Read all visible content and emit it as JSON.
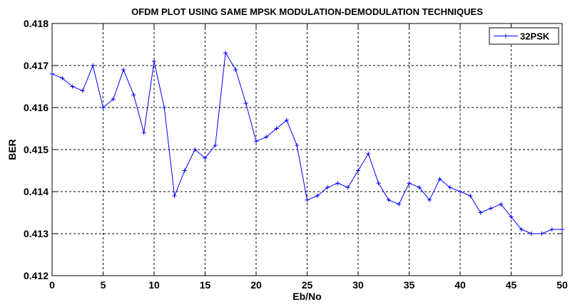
{
  "chart_data": {
    "type": "line",
    "title": "OFDM PLOT USING SAME MPSK MODULATION-DEMODULATION TECHNIQUES",
    "xlabel": "Eb/No",
    "ylabel": "BER",
    "xlim": [
      0,
      50
    ],
    "ylim": [
      0.412,
      0.418
    ],
    "xticks": [
      0,
      5,
      10,
      15,
      20,
      25,
      30,
      35,
      40,
      45,
      50
    ],
    "yticks": [
      0.412,
      0.413,
      0.414,
      0.415,
      0.416,
      0.417,
      0.418
    ],
    "xtick_labels": [
      "0",
      "5",
      "10",
      "15",
      "20",
      "25",
      "30",
      "35",
      "40",
      "45",
      "50"
    ],
    "ytick_labels": [
      "0.412",
      "0.413",
      "0.414",
      "0.415",
      "0.416",
      "0.417",
      "0.418"
    ],
    "grid": true,
    "legend_position": "top-right",
    "series": [
      {
        "name": "32PSK",
        "color": "#0000ff",
        "marker": "plus",
        "x": [
          0,
          1,
          2,
          3,
          4,
          5,
          6,
          7,
          8,
          9,
          10,
          11,
          12,
          13,
          14,
          15,
          16,
          17,
          18,
          19,
          20,
          21,
          22,
          23,
          24,
          25,
          26,
          27,
          28,
          29,
          30,
          31,
          32,
          33,
          34,
          35,
          36,
          37,
          38,
          39,
          40,
          41,
          42,
          43,
          44,
          45,
          46,
          47,
          48,
          49,
          50
        ],
        "y": [
          0.4168,
          0.4167,
          0.4165,
          0.4164,
          0.417,
          0.416,
          0.4162,
          0.4169,
          0.4163,
          0.4154,
          0.4171,
          0.416,
          0.4139,
          0.4145,
          0.415,
          0.4148,
          0.4151,
          0.4173,
          0.4169,
          0.4161,
          0.4152,
          0.4153,
          0.4155,
          0.4157,
          0.4151,
          0.4138,
          0.4139,
          0.4141,
          0.4142,
          0.4141,
          0.4145,
          0.4149,
          0.4142,
          0.4138,
          0.4137,
          0.4142,
          0.4141,
          0.4138,
          0.4143,
          0.4141,
          0.414,
          0.4139,
          0.4135,
          0.4136,
          0.4137,
          0.4134,
          0.4131,
          0.413,
          0.413,
          0.4131,
          0.4131
        ]
      }
    ]
  }
}
